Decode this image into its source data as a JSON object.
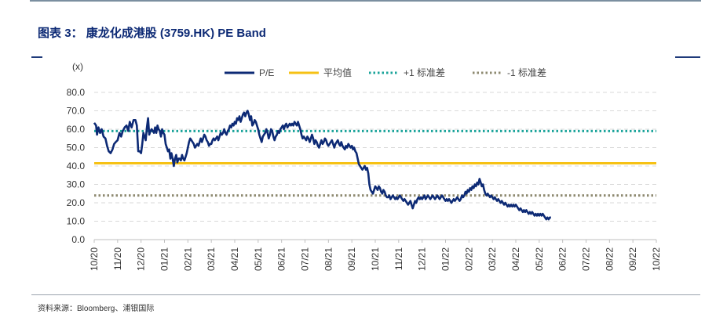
{
  "title": {
    "prefix": "图表",
    "number": "3：",
    "text": "康龙化成港股",
    "code": "(3759.HK) PE Band"
  },
  "source": "资料来源：Bloomberg、浦银国际",
  "colors": {
    "pe": "#0d2a75",
    "mean": "#f6c114",
    "plus1": "#1aa39a",
    "minus1": "#8e8a70",
    "grid": "#d9d9d9"
  },
  "chart_data": {
    "type": "line",
    "unit_label": "(x)",
    "ylim": [
      0,
      80
    ],
    "yticks": [
      "0.0",
      "10.0",
      "20.0",
      "30.0",
      "40.0",
      "50.0",
      "60.0",
      "70.0",
      "80.0"
    ],
    "xtick_labels": [
      "10/20",
      "11/20",
      "12/20",
      "01/21",
      "02/21",
      "03/21",
      "04/21",
      "05/21",
      "06/21",
      "07/21",
      "08/21",
      "09/21",
      "10/21",
      "11/21",
      "12/21",
      "01/22",
      "02/22",
      "03/22",
      "04/22",
      "05/22",
      "06/22",
      "07/22",
      "08/22",
      "09/22",
      "10/22"
    ],
    "legend": [
      "P/E",
      "平均值",
      "+1 标准差",
      "-1 标准差"
    ],
    "legend_position": "top",
    "mean": 41.5,
    "plus1_std": 59.0,
    "minus1_std": 24.0,
    "pe_series": [
      [
        0.0,
        63.5
      ],
      [
        0.08,
        62
      ],
      [
        0.12,
        57
      ],
      [
        0.18,
        61
      ],
      [
        0.25,
        58
      ],
      [
        0.32,
        60
      ],
      [
        0.4,
        56
      ],
      [
        0.48,
        55
      ],
      [
        0.55,
        51
      ],
      [
        0.62,
        48
      ],
      [
        0.7,
        47
      ],
      [
        0.78,
        49
      ],
      [
        0.85,
        52
      ],
      [
        0.92,
        53
      ],
      [
        1.0,
        54
      ],
      [
        1.08,
        58
      ],
      [
        1.15,
        56
      ],
      [
        1.22,
        59
      ],
      [
        1.3,
        61
      ],
      [
        1.38,
        62
      ],
      [
        1.45,
        59
      ],
      [
        1.52,
        64
      ],
      [
        1.6,
        61
      ],
      [
        1.68,
        65
      ],
      [
        1.76,
        65
      ],
      [
        1.82,
        62
      ],
      [
        1.88,
        48
      ],
      [
        1.94,
        48
      ],
      [
        2.0,
        47
      ],
      [
        2.05,
        52
      ],
      [
        2.1,
        58
      ],
      [
        2.15,
        56
      ],
      [
        2.2,
        54
      ],
      [
        2.25,
        61
      ],
      [
        2.3,
        66
      ],
      [
        2.35,
        57
      ],
      [
        2.4,
        59
      ],
      [
        2.45,
        60
      ],
      [
        2.5,
        59
      ],
      [
        2.55,
        58
      ],
      [
        2.6,
        61
      ],
      [
        2.65,
        58
      ],
      [
        2.7,
        62
      ],
      [
        2.75,
        60
      ],
      [
        2.8,
        59
      ],
      [
        2.85,
        56
      ],
      [
        2.9,
        60
      ],
      [
        2.95,
        58
      ],
      [
        3.0,
        57
      ],
      [
        3.05,
        52
      ],
      [
        3.1,
        50
      ],
      [
        3.15,
        48
      ],
      [
        3.2,
        49
      ],
      [
        3.25,
        44
      ],
      [
        3.3,
        47
      ],
      [
        3.35,
        44
      ],
      [
        3.4,
        40
      ],
      [
        3.45,
        44
      ],
      [
        3.5,
        46
      ],
      [
        3.55,
        42
      ],
      [
        3.6,
        44
      ],
      [
        3.65,
        44
      ],
      [
        3.7,
        43
      ],
      [
        3.75,
        46
      ],
      [
        3.8,
        44
      ],
      [
        3.85,
        43
      ],
      [
        3.9,
        45
      ],
      [
        3.95,
        47
      ],
      [
        4.0,
        50
      ],
      [
        4.05,
        53
      ],
      [
        4.1,
        55
      ],
      [
        4.15,
        54
      ],
      [
        4.2,
        53
      ],
      [
        4.25,
        52
      ],
      [
        4.3,
        50
      ],
      [
        4.35,
        51
      ],
      [
        4.4,
        52
      ],
      [
        4.45,
        51
      ],
      [
        4.5,
        53
      ],
      [
        4.55,
        55
      ],
      [
        4.6,
        53
      ],
      [
        4.65,
        55
      ],
      [
        4.7,
        57
      ],
      [
        4.75,
        56
      ],
      [
        4.8,
        54
      ],
      [
        4.85,
        53
      ],
      [
        4.9,
        51
      ],
      [
        4.95,
        52
      ],
      [
        5.0,
        52
      ],
      [
        5.05,
        54
      ],
      [
        5.1,
        55
      ],
      [
        5.15,
        54
      ],
      [
        5.2,
        55
      ],
      [
        5.25,
        56
      ],
      [
        5.3,
        54
      ],
      [
        5.35,
        56
      ],
      [
        5.4,
        58
      ],
      [
        5.45,
        57
      ],
      [
        5.5,
        58
      ],
      [
        5.55,
        60
      ],
      [
        5.6,
        58
      ],
      [
        5.65,
        57
      ],
      [
        5.7,
        59
      ],
      [
        5.75,
        60
      ],
      [
        5.8,
        62
      ],
      [
        5.85,
        61
      ],
      [
        5.9,
        63
      ],
      [
        5.95,
        62
      ],
      [
        6.0,
        64
      ],
      [
        6.05,
        63
      ],
      [
        6.1,
        66
      ],
      [
        6.15,
        65
      ],
      [
        6.2,
        67
      ],
      [
        6.25,
        64
      ],
      [
        6.3,
        66
      ],
      [
        6.35,
        68
      ],
      [
        6.4,
        69
      ],
      [
        6.45,
        67
      ],
      [
        6.5,
        69
      ],
      [
        6.55,
        70
      ],
      [
        6.6,
        68
      ],
      [
        6.65,
        65
      ],
      [
        6.7,
        67
      ],
      [
        6.75,
        62
      ],
      [
        6.8,
        63
      ],
      [
        6.85,
        65
      ],
      [
        6.9,
        64
      ],
      [
        6.95,
        62
      ],
      [
        7.0,
        60
      ],
      [
        7.05,
        57
      ],
      [
        7.1,
        55
      ],
      [
        7.15,
        53
      ],
      [
        7.2,
        56
      ],
      [
        7.25,
        57
      ],
      [
        7.3,
        58
      ],
      [
        7.35,
        60
      ],
      [
        7.4,
        58
      ],
      [
        7.45,
        55
      ],
      [
        7.5,
        57
      ],
      [
        7.55,
        60
      ],
      [
        7.6,
        59
      ],
      [
        7.65,
        56
      ],
      [
        7.7,
        54
      ],
      [
        7.75,
        56
      ],
      [
        7.8,
        57
      ],
      [
        7.85,
        59
      ],
      [
        7.9,
        58
      ],
      [
        7.95,
        60
      ],
      [
        8.0,
        61
      ],
      [
        8.05,
        62
      ],
      [
        8.1,
        60
      ],
      [
        8.15,
        62
      ],
      [
        8.2,
        63
      ],
      [
        8.25,
        61
      ],
      [
        8.3,
        62
      ],
      [
        8.35,
        63
      ],
      [
        8.4,
        62
      ],
      [
        8.45,
        63
      ],
      [
        8.5,
        62
      ],
      [
        8.55,
        64
      ],
      [
        8.6,
        63
      ],
      [
        8.65,
        62
      ],
      [
        8.7,
        64
      ],
      [
        8.75,
        62
      ],
      [
        8.8,
        60
      ],
      [
        8.85,
        57
      ],
      [
        8.9,
        55
      ],
      [
        8.95,
        56
      ],
      [
        9.0,
        55
      ],
      [
        9.05,
        54
      ],
      [
        9.1,
        56
      ],
      [
        9.15,
        55
      ],
      [
        9.2,
        53
      ],
      [
        9.25,
        55
      ],
      [
        9.3,
        57
      ],
      [
        9.35,
        55
      ],
      [
        9.4,
        52
      ],
      [
        9.45,
        54
      ],
      [
        9.5,
        53
      ],
      [
        9.55,
        51
      ],
      [
        9.6,
        50
      ],
      [
        9.65,
        52
      ],
      [
        9.7,
        54
      ],
      [
        9.75,
        52
      ],
      [
        9.8,
        53
      ],
      [
        9.85,
        55
      ],
      [
        9.9,
        54
      ],
      [
        9.95,
        52
      ],
      [
        10.0,
        51
      ],
      [
        10.05,
        52
      ],
      [
        10.1,
        53
      ],
      [
        10.15,
        54
      ],
      [
        10.2,
        52
      ],
      [
        10.25,
        50
      ],
      [
        10.3,
        52
      ],
      [
        10.35,
        53
      ],
      [
        10.4,
        54
      ],
      [
        10.45,
        52
      ],
      [
        10.5,
        51
      ],
      [
        10.55,
        53
      ],
      [
        10.6,
        51
      ],
      [
        10.65,
        50
      ],
      [
        10.7,
        49
      ],
      [
        10.75,
        51
      ],
      [
        10.8,
        50
      ],
      [
        10.85,
        52
      ],
      [
        10.9,
        51
      ],
      [
        10.95,
        50
      ],
      [
        11.0,
        51
      ],
      [
        11.05,
        49
      ],
      [
        11.1,
        50
      ],
      [
        11.15,
        48
      ],
      [
        11.2,
        47
      ],
      [
        11.25,
        44
      ],
      [
        11.3,
        41
      ],
      [
        11.35,
        40
      ],
      [
        11.4,
        39
      ],
      [
        11.45,
        38
      ],
      [
        11.5,
        39
      ],
      [
        11.55,
        40
      ],
      [
        11.6,
        38
      ],
      [
        11.65,
        39
      ],
      [
        11.7,
        36
      ],
      [
        11.75,
        30
      ],
      [
        11.8,
        27
      ],
      [
        11.85,
        26
      ],
      [
        11.9,
        25
      ],
      [
        11.95,
        27
      ],
      [
        12.0,
        29
      ],
      [
        12.05,
        28
      ],
      [
        12.1,
        27
      ],
      [
        12.15,
        29
      ],
      [
        12.2,
        28
      ],
      [
        12.25,
        26
      ],
      [
        12.3,
        25
      ],
      [
        12.35,
        27
      ],
      [
        12.4,
        26
      ],
      [
        12.45,
        24
      ],
      [
        12.5,
        23
      ],
      [
        12.55,
        23
      ],
      [
        12.6,
        24
      ],
      [
        12.65,
        22
      ],
      [
        12.7,
        23
      ],
      [
        12.75,
        24
      ],
      [
        12.8,
        23
      ],
      [
        12.85,
        22
      ],
      [
        12.9,
        23
      ],
      [
        12.95,
        22
      ],
      [
        13.0,
        23
      ],
      [
        13.05,
        24
      ],
      [
        13.1,
        23
      ],
      [
        13.15,
        22
      ],
      [
        13.2,
        21
      ],
      [
        13.25,
        22
      ],
      [
        13.3,
        21
      ],
      [
        13.35,
        20
      ],
      [
        13.4,
        19
      ],
      [
        13.45,
        20
      ],
      [
        13.5,
        21
      ],
      [
        13.55,
        19
      ],
      [
        13.6,
        17
      ],
      [
        13.65,
        19
      ],
      [
        13.7,
        21
      ],
      [
        13.75,
        20
      ],
      [
        13.8,
        22
      ],
      [
        13.85,
        23
      ],
      [
        13.9,
        22
      ],
      [
        13.95,
        23
      ],
      [
        14.0,
        22
      ],
      [
        14.05,
        23
      ],
      [
        14.1,
        24
      ],
      [
        14.15,
        22
      ],
      [
        14.2,
        23
      ],
      [
        14.25,
        24
      ],
      [
        14.3,
        23
      ],
      [
        14.35,
        22
      ],
      [
        14.4,
        23
      ],
      [
        14.45,
        24
      ],
      [
        14.5,
        23
      ],
      [
        14.55,
        22
      ],
      [
        14.6,
        23
      ],
      [
        14.65,
        24
      ],
      [
        14.7,
        23
      ],
      [
        14.75,
        22
      ],
      [
        14.8,
        23
      ],
      [
        14.85,
        24
      ],
      [
        14.9,
        23
      ],
      [
        14.95,
        22
      ],
      [
        15.0,
        21
      ],
      [
        15.05,
        22
      ],
      [
        15.1,
        21
      ],
      [
        15.15,
        22
      ],
      [
        15.2,
        21
      ],
      [
        15.25,
        20
      ],
      [
        15.3,
        21
      ],
      [
        15.35,
        22
      ],
      [
        15.4,
        21
      ],
      [
        15.45,
        22
      ],
      [
        15.5,
        23
      ],
      [
        15.55,
        22
      ],
      [
        15.6,
        21
      ],
      [
        15.65,
        22
      ],
      [
        15.7,
        24
      ],
      [
        15.75,
        23
      ],
      [
        15.8,
        24
      ],
      [
        15.85,
        26
      ],
      [
        15.9,
        25
      ],
      [
        15.95,
        27
      ],
      [
        16.0,
        26
      ],
      [
        16.05,
        28
      ],
      [
        16.1,
        27
      ],
      [
        16.15,
        29
      ],
      [
        16.2,
        28
      ],
      [
        16.25,
        30
      ],
      [
        16.3,
        29
      ],
      [
        16.35,
        31
      ],
      [
        16.4,
        30
      ],
      [
        16.45,
        33
      ],
      [
        16.5,
        31
      ],
      [
        16.55,
        29
      ],
      [
        16.6,
        30
      ],
      [
        16.65,
        27
      ],
      [
        16.7,
        25
      ],
      [
        16.75,
        24
      ],
      [
        16.8,
        25
      ],
      [
        16.85,
        24
      ],
      [
        16.9,
        23
      ],
      [
        16.95,
        24
      ],
      [
        17.0,
        23
      ],
      [
        17.05,
        22
      ],
      [
        17.1,
        23
      ],
      [
        17.15,
        22
      ],
      [
        17.2,
        21
      ],
      [
        17.25,
        22
      ],
      [
        17.3,
        21
      ],
      [
        17.35,
        20
      ],
      [
        17.4,
        21
      ],
      [
        17.45,
        20
      ],
      [
        17.5,
        19
      ],
      [
        17.55,
        20
      ],
      [
        17.6,
        19
      ],
      [
        17.65,
        18
      ],
      [
        17.7,
        19
      ],
      [
        17.75,
        18
      ],
      [
        17.8,
        19
      ],
      [
        17.85,
        18
      ],
      [
        17.9,
        19
      ],
      [
        17.95,
        18
      ],
      [
        18.0,
        19
      ],
      [
        18.05,
        18
      ],
      [
        18.1,
        17
      ],
      [
        18.15,
        16
      ],
      [
        18.2,
        17
      ],
      [
        18.25,
        16
      ],
      [
        18.3,
        15
      ],
      [
        18.35,
        16
      ],
      [
        18.4,
        15
      ],
      [
        18.45,
        16
      ],
      [
        18.5,
        15
      ],
      [
        18.55,
        14
      ],
      [
        18.6,
        15
      ],
      [
        18.65,
        14
      ],
      [
        18.7,
        15
      ],
      [
        18.75,
        14
      ],
      [
        18.8,
        13
      ],
      [
        18.85,
        14
      ],
      [
        18.9,
        13
      ],
      [
        18.95,
        14
      ],
      [
        19.0,
        13
      ],
      [
        19.05,
        14
      ],
      [
        19.1,
        13
      ],
      [
        19.15,
        14
      ],
      [
        19.2,
        13
      ],
      [
        19.25,
        12
      ],
      [
        19.3,
        11
      ],
      [
        19.35,
        12
      ],
      [
        19.4,
        11
      ],
      [
        19.45,
        12
      ],
      [
        19.5,
        12
      ]
    ]
  }
}
